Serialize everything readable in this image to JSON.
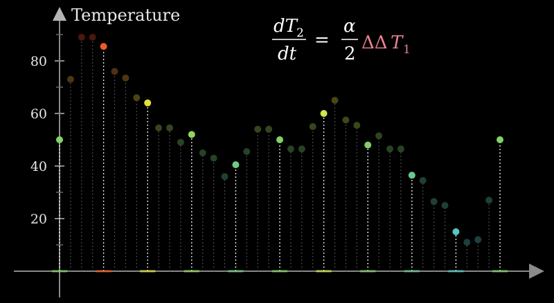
{
  "chart_data": {
    "type": "scatter",
    "style": "stem",
    "title": "",
    "ylabel": "Temperature",
    "xlabel": "",
    "ylim": [
      0,
      100
    ],
    "yticks": [
      20,
      40,
      60,
      80
    ],
    "grid": false,
    "series": [
      {
        "x": [
          1,
          2,
          3,
          4,
          5,
          6,
          7,
          8,
          9,
          10,
          11,
          12,
          13,
          14,
          15,
          16,
          17,
          18,
          19,
          20,
          21,
          22,
          23,
          24,
          25,
          26,
          27,
          28,
          29,
          30,
          31,
          32,
          33,
          34,
          35,
          36,
          37,
          38,
          39,
          40,
          41
        ],
        "values": [
          50,
          73,
          89,
          89,
          85.5,
          76,
          73.5,
          66,
          64,
          54.5,
          54.5,
          49,
          52,
          45,
          43,
          36,
          40.5,
          45.5,
          54,
          54,
          50,
          46.5,
          46.5,
          55,
          60,
          65,
          57.5,
          55.5,
          48,
          51.5,
          46.5,
          46.5,
          36.5,
          34.5,
          26.5,
          25,
          15,
          11,
          12,
          27,
          50
        ],
        "highlighted": [
          true,
          false,
          false,
          false,
          true,
          false,
          false,
          false,
          true,
          false,
          false,
          false,
          true,
          false,
          false,
          false,
          true,
          false,
          false,
          false,
          true,
          false,
          false,
          false,
          true,
          false,
          false,
          false,
          true,
          false,
          false,
          false,
          true,
          false,
          false,
          false,
          true,
          false,
          false,
          false,
          true
        ]
      }
    ]
  },
  "equation": {
    "lhs_num": "dT",
    "lhs_num_sub": "2",
    "lhs_den": "dt",
    "equals": "=",
    "rhs_num": "α",
    "rhs_den": "2",
    "rhs_ops": "ΔΔ",
    "rhs_var": "T",
    "rhs_var_sub": "1"
  }
}
